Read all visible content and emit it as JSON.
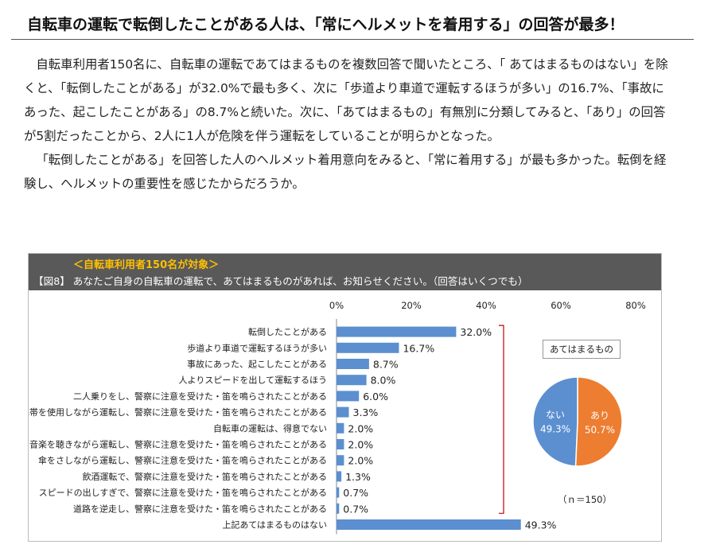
{
  "headline": "自転車の運転で転倒したことがある人は、「常にヘルメットを着用する」の回答が最多！",
  "paragraphs": [
    "自転車利用者150名に、自転車の運転であてはまるものを複数回答で聞いたところ、「 あてはまるものはない」を除くと、「転倒したことがある」が32.0%で最も多く、次に「歩道より車道で運転するほうが多い」の16.7%、「事故にあった、起こしたことがある」の8.7%と続いた。次に、「あてはまるもの」有無別に分類してみると、「あり」の回答が5割だったことから、2人に1人が危険を伴う運転をしていることが明らかとなった。",
    "「転倒したことがある」を回答した人のヘルメット着用意向をみると、「常に着用する」が最も多かった。転倒を経験し、ヘルメットの重要性を感じたからだろうか。"
  ],
  "figure": {
    "subtitle": "＜自転車利用者150名が対象＞",
    "title": "【図8】 あなたご自身の自転車の運転で、あてはまるものがあれば、お知らせください。（回答はいくつでも）"
  },
  "chart_data": [
    {
      "type": "bar",
      "orientation": "horizontal",
      "categories": [
        "転倒したことがある",
        "歩道より車道で運転するほうが多い",
        "事故にあった、起こしたことがある",
        "人よりスピードを出して運転するほう",
        "二人乗りをし、警察に注意を受けた・笛を鳴らされたことがある",
        "携帯を使用しながら運転し、警察に注意を受けた・笛を鳴らされたことがある",
        "自転車の運転は、得意でない",
        "音楽を聴きながら運転し、警察に注意を受けた・笛を鳴らされたことがある",
        "傘をさしながら運転し、警察に注意を受けた・笛を鳴らされたことがある",
        "飲酒運転で、警察に注意を受けた・笛を鳴らされたことがある",
        "スピードの出しすぎで、警察に注意を受けた・笛を鳴らされたことがある",
        "道路を逆走し、警察に注意を受けた・笛を鳴らされたことがある",
        "上記あてはまるものはない"
      ],
      "values": [
        32.0,
        16.7,
        8.7,
        8.0,
        6.0,
        3.3,
        2.0,
        2.0,
        2.0,
        1.3,
        0.7,
        0.7,
        49.3
      ],
      "data_labels": [
        "32.0%",
        "16.7%",
        "8.7%",
        "8.0%",
        "6.0%",
        "3.3%",
        "2.0%",
        "2.0%",
        "2.0%",
        "1.3%",
        "0.7%",
        "0.7%",
        "49.3%"
      ],
      "xlim": [
        0,
        80
      ],
      "x_ticks": [
        "0%",
        "20%",
        "40%",
        "60%",
        "80%"
      ],
      "axis_position": "top",
      "grid": false,
      "bar_color": "#5b8fd0",
      "bracket_color": "#c00000"
    },
    {
      "type": "pie",
      "title": "あてはまるもの",
      "slices": [
        {
          "label": "あり",
          "value": 50.7,
          "value_label": "50.7%",
          "color": "#ed7d31"
        },
        {
          "label": "ない",
          "value": 49.3,
          "value_label": "49.3%",
          "color": "#5b8fd0"
        }
      ],
      "note": "（ｎ＝150）"
    }
  ]
}
